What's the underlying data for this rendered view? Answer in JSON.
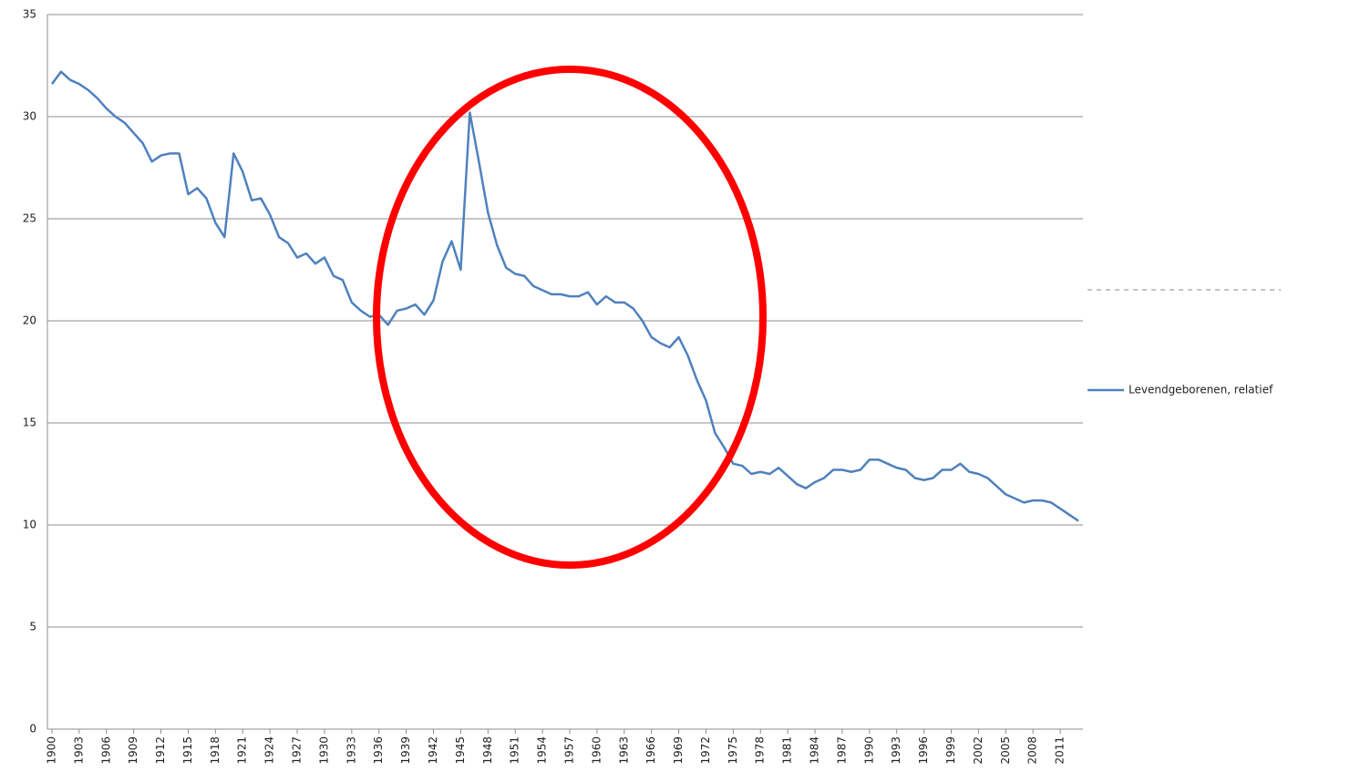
{
  "chart_data": {
    "type": "line",
    "x": [
      1900,
      1901,
      1902,
      1903,
      1904,
      1905,
      1906,
      1907,
      1908,
      1909,
      1910,
      1911,
      1912,
      1913,
      1914,
      1915,
      1916,
      1917,
      1918,
      1919,
      1920,
      1921,
      1922,
      1923,
      1924,
      1925,
      1926,
      1927,
      1928,
      1929,
      1930,
      1931,
      1932,
      1933,
      1934,
      1935,
      1936,
      1937,
      1938,
      1939,
      1940,
      1941,
      1942,
      1943,
      1944,
      1945,
      1946,
      1947,
      1948,
      1949,
      1950,
      1951,
      1952,
      1953,
      1954,
      1955,
      1956,
      1957,
      1958,
      1959,
      1960,
      1961,
      1962,
      1963,
      1964,
      1965,
      1966,
      1967,
      1968,
      1969,
      1970,
      1971,
      1972,
      1973,
      1974,
      1975,
      1976,
      1977,
      1978,
      1979,
      1980,
      1981,
      1982,
      1983,
      1984,
      1985,
      1986,
      1987,
      1988,
      1989,
      1990,
      1991,
      1992,
      1993,
      1994,
      1995,
      1996,
      1997,
      1998,
      1999,
      2000,
      2001,
      2002,
      2003,
      2004,
      2005,
      2006,
      2007,
      2008,
      2009,
      2010,
      2011,
      2012,
      2013
    ],
    "series": [
      {
        "name": "Levendgeborenen, relatief",
        "color": "#4f81bd",
        "values": [
          31.6,
          32.2,
          31.8,
          31.6,
          31.3,
          30.9,
          30.4,
          30.0,
          29.7,
          29.2,
          28.7,
          27.8,
          28.1,
          28.2,
          28.2,
          26.2,
          26.5,
          26.0,
          24.8,
          24.1,
          28.2,
          27.3,
          25.9,
          26.0,
          25.2,
          24.1,
          23.8,
          23.1,
          23.3,
          22.8,
          23.1,
          22.2,
          22.0,
          20.9,
          20.5,
          20.2,
          20.3,
          19.8,
          20.5,
          20.6,
          20.8,
          20.3,
          21.0,
          22.9,
          23.9,
          22.5,
          30.2,
          27.8,
          25.3,
          23.7,
          22.6,
          22.3,
          22.2,
          21.7,
          21.5,
          21.3,
          21.3,
          21.2,
          21.2,
          21.4,
          20.8,
          21.2,
          20.9,
          20.9,
          20.6,
          20.0,
          19.2,
          18.9,
          18.7,
          19.2,
          18.3,
          17.1,
          16.1,
          14.5,
          13.8,
          13.0,
          12.9,
          12.5,
          12.6,
          12.5,
          12.8,
          12.4,
          12.0,
          11.8,
          12.1,
          12.3,
          12.7,
          12.7,
          12.6,
          12.7,
          13.2,
          13.2,
          13.0,
          12.8,
          12.7,
          12.3,
          12.2,
          12.3,
          12.7,
          12.7,
          13.0,
          12.6,
          12.5,
          12.3,
          11.9,
          11.5,
          11.3,
          11.1,
          11.2,
          11.2,
          11.1,
          10.8,
          10.5,
          10.2
        ]
      }
    ],
    "xlim": [
      1899.5,
      2013.5
    ],
    "xticks": [
      1900,
      1903,
      1906,
      1909,
      1912,
      1915,
      1918,
      1921,
      1924,
      1927,
      1930,
      1933,
      1936,
      1939,
      1942,
      1945,
      1948,
      1951,
      1954,
      1957,
      1960,
      1963,
      1966,
      1969,
      1972,
      1975,
      1978,
      1981,
      1984,
      1987,
      1990,
      1993,
      1996,
      1999,
      2002,
      2005,
      2008,
      2011
    ],
    "ylim": [
      0,
      35
    ],
    "yticks": [
      0,
      5,
      10,
      15,
      20,
      25,
      30,
      35
    ],
    "grid": true,
    "legend": "right"
  }
}
